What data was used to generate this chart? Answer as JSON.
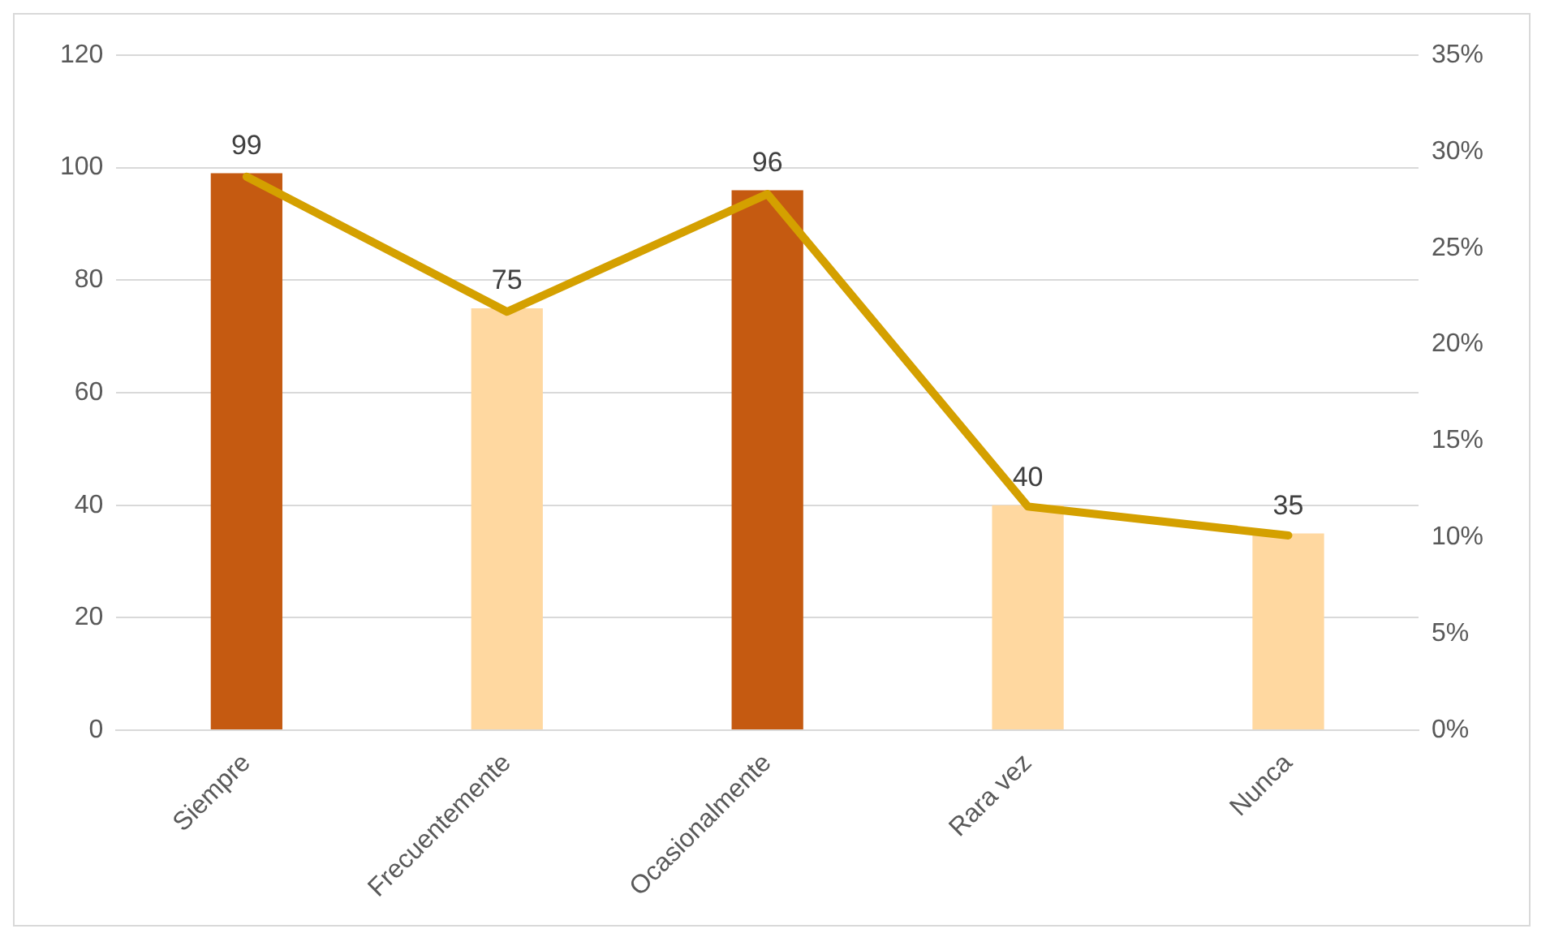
{
  "chart_data": {
    "type": "bar",
    "categories": [
      "Siempre",
      "Frecuentemente",
      "Ocasionalmente",
      "Rara vez",
      "Nunca"
    ],
    "series": [
      {
        "colors": [
          "#c55a11",
          "#ffd8a0",
          "#c55a11",
          "#ffd8a0",
          "#ffd8a0"
        ],
        "values": [
          99,
          75,
          96,
          40,
          35
        ],
        "value_labels": [
          "99",
          "75",
          "96",
          "40",
          "35"
        ]
      },
      {
        "type": "line",
        "axis": "y2",
        "color": "#d4a000",
        "values": [
          28.7,
          21.7,
          27.8,
          11.6,
          10.1
        ],
        "marker": "none"
      }
    ],
    "ylim": [
      0,
      120
    ],
    "yticks": [
      0,
      20,
      40,
      60,
      80,
      100,
      120
    ],
    "y2lim": [
      0,
      35
    ],
    "y2ticks": [
      {
        "value": 0,
        "label": "0%"
      },
      {
        "value": 5,
        "label": "5%"
      },
      {
        "value": 10,
        "label": "10%"
      },
      {
        "value": 15,
        "label": "15%"
      },
      {
        "value": 20,
        "label": "20%"
      },
      {
        "value": 25,
        "label": "25%"
      },
      {
        "value": 30,
        "label": "30%"
      },
      {
        "value": 35,
        "label": "35%"
      }
    ],
    "grid": "y",
    "legend": false
  }
}
